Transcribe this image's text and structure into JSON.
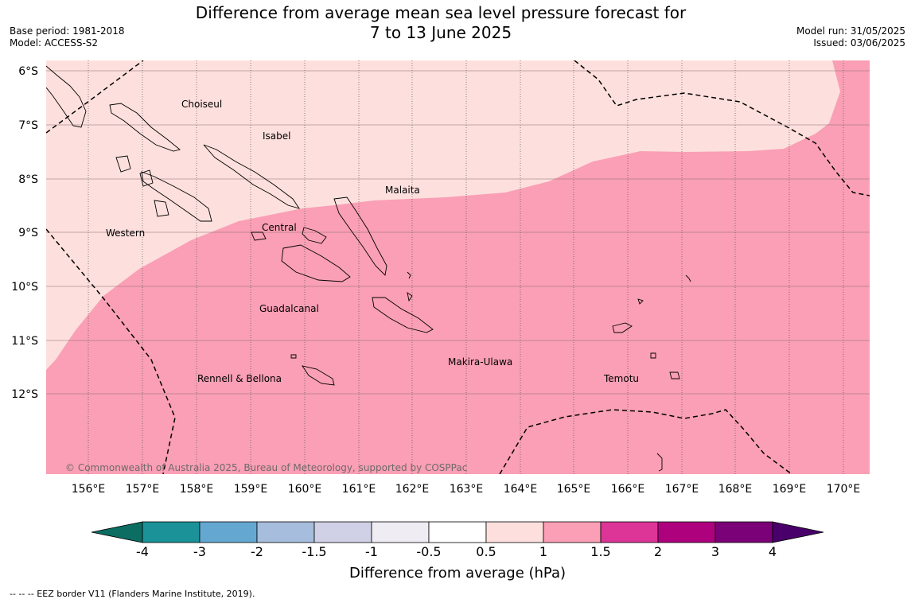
{
  "title_line1": "Difference from average mean sea level pressure forecast for",
  "title_line2": "7 to 13 June 2025",
  "base_period": "Base period: 1981-2018",
  "model": "Model: ACCESS-S2",
  "model_run": "Model run: 31/05/2025",
  "issued": "Issued: 03/06/2025",
  "map": {
    "lat_ticks": [
      "6°S",
      "7°S",
      "8°S",
      "9°S",
      "10°S",
      "11°S",
      "12°S"
    ],
    "lon_ticks": [
      "156°E",
      "157°E",
      "158°E",
      "159°E",
      "160°E",
      "161°E",
      "162°E",
      "163°E",
      "164°E",
      "165°E",
      "166°E",
      "167°E",
      "168°E",
      "169°E",
      "170°E"
    ],
    "provinces": [
      "Choiseul",
      "Isabel",
      "Malaita",
      "Western",
      "Central",
      "Guadalcanal",
      "Makira-Ulawa",
      "Rennell & Bellona",
      "Temotu"
    ],
    "copyright": "© Commonwealth of Australia 2025, Bureau of Meteorology, supported by COSPPac"
  },
  "colorbar": {
    "labels": [
      "-4",
      "-3",
      "-2",
      "-1.5",
      "-1",
      "-0.5",
      "0.5",
      "1",
      "1.5",
      "2",
      "3",
      "4"
    ],
    "colors": [
      "#1b9297",
      "#64a8d2",
      "#a7bddd",
      "#d0d1e6",
      "#f0ecf3",
      "#ffffff",
      "#fde0dd",
      "#fa9fb5",
      "#dd3497",
      "#ae017e",
      "#7a0177"
    ],
    "under_color": "#0c6e62",
    "over_color": "#49006a",
    "label": "Difference from average (hPa)"
  },
  "footnote": "--  --  -- EEZ border V11 (Flanders Marine Institute, 2019)."
}
